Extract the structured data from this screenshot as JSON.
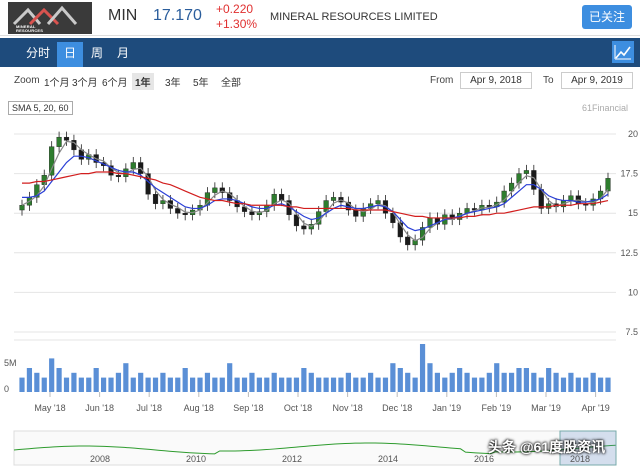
{
  "header": {
    "logo_text_1": "MINERAL",
    "logo_text_2": "RESOURCES",
    "ticker": "MIN",
    "price": "17.170",
    "change": "+0.220",
    "change_pct": "+1.30%",
    "company": "MINERAL RESOURCES LIMITED",
    "follow_label": "已关注"
  },
  "tabs": [
    {
      "label": "分时"
    },
    {
      "label": "日",
      "active": true
    },
    {
      "label": "周"
    },
    {
      "label": "月"
    }
  ],
  "zoom": {
    "label": "Zoom",
    "options": [
      "1个月",
      "3个月",
      "6个月",
      "1年",
      "3年",
      "5年",
      "全部"
    ],
    "active": "1年"
  },
  "range": {
    "from_label": "From",
    "from_value": "Apr 9, 2018",
    "to_label": "To",
    "to_value": "Apr 9, 2019"
  },
  "sma_label": "SMA 5, 20, 60",
  "credit": "61Financial",
  "watermark": "头条 @61度股资讯",
  "colors": {
    "up": "#2e7d2e",
    "down": "#1a1a1a",
    "sma5": "#888888",
    "sma20": "#2a3fd6",
    "sma60": "#d21e1e",
    "navigator": "#2e9b2e",
    "volume": "#5a8fd6",
    "header_bar": "#1e4b7c",
    "accent": "#3d8ee0"
  },
  "chart_data": {
    "type": "line",
    "price_ticks": [
      "20",
      "17.5",
      "15",
      "12.5",
      "10",
      "7.5"
    ],
    "price_range": [
      7.5,
      20
    ],
    "volume_label": "5M",
    "volume_zero": "0",
    "x_labels": [
      "May '18",
      "Jun '18",
      "Jul '18",
      "Aug '18",
      "Sep '18",
      "Oct '18",
      "Nov '18",
      "Dec '18",
      "Jan '19",
      "Feb '19",
      "Mar '19",
      "Apr '19"
    ],
    "navigator_years": [
      "2008",
      "2010",
      "2012",
      "2014",
      "2016",
      "2018"
    ],
    "close_series": [
      15.5,
      16.0,
      16.8,
      17.4,
      19.2,
      19.8,
      19.6,
      19.0,
      18.4,
      18.7,
      18.2,
      18.0,
      17.4,
      17.3,
      17.8,
      18.2,
      17.5,
      16.2,
      15.6,
      15.8,
      15.3,
      15.0,
      14.9,
      15.2,
      15.5,
      16.3,
      16.6,
      16.3,
      15.8,
      15.4,
      15.1,
      14.9,
      15.1,
      15.5,
      16.2,
      15.8,
      14.9,
      14.2,
      14.0,
      14.3,
      15.1,
      15.8,
      16.0,
      15.7,
      15.2,
      14.8,
      15.3,
      15.6,
      15.8,
      15.0,
      14.4,
      13.5,
      13.0,
      13.3,
      14.1,
      14.7,
      14.3,
      14.9,
      14.6,
      15.0,
      15.3,
      15.2,
      15.5,
      15.4,
      15.7,
      16.4,
      16.9,
      17.5,
      17.7,
      16.5,
      15.3,
      15.6,
      15.4,
      15.8,
      16.1,
      15.6,
      15.5,
      15.9,
      16.4,
      17.2
    ],
    "sma20_series": [
      16.0,
      16.0,
      16.1,
      16.4,
      17.0,
      17.6,
      18.2,
      18.6,
      18.6,
      18.5,
      18.3,
      18.1,
      17.9,
      17.7,
      17.6,
      17.6,
      17.4,
      17.0,
      16.6,
      16.3,
      16.0,
      15.7,
      15.4,
      15.3,
      15.3,
      15.5,
      15.8,
      15.9,
      15.9,
      15.8,
      15.6,
      15.4,
      15.3,
      15.3,
      15.5,
      15.6,
      15.4,
      15.1,
      14.8,
      14.6,
      14.7,
      15.0,
      15.3,
      15.5,
      15.4,
      15.3,
      15.3,
      15.4,
      15.5,
      15.4,
      15.1,
      14.6,
      14.1,
      13.9,
      14.0,
      14.2,
      14.4,
      14.6,
      14.7,
      14.8,
      15.0,
      15.1,
      15.2,
      15.3,
      15.4,
      15.6,
      16.0,
      16.4,
      16.8,
      16.8,
      16.5,
      16.1,
      15.9,
      15.8,
      15.8,
      15.7,
      15.7,
      15.8,
      15.9,
      16.2
    ],
    "sma60_series": [
      16.9,
      16.9,
      17.0,
      17.0,
      17.1,
      17.2,
      17.3,
      17.4,
      17.5,
      17.5,
      17.6,
      17.6,
      17.6,
      17.5,
      17.5,
      17.4,
      17.3,
      17.2,
      17.1,
      16.9,
      16.8,
      16.6,
      16.4,
      16.2,
      16.0,
      15.9,
      15.8,
      15.8,
      15.7,
      15.6,
      15.6,
      15.5,
      15.5,
      15.5,
      15.5,
      15.5,
      15.4,
      15.4,
      15.3,
      15.3,
      15.3,
      15.3,
      15.3,
      15.3,
      15.3,
      15.2,
      15.2,
      15.2,
      15.2,
      15.2,
      15.1,
      15.0,
      14.9,
      14.8,
      14.8,
      14.7,
      14.7,
      14.7,
      14.7,
      14.7,
      14.8,
      14.8,
      14.9,
      14.9,
      15.0,
      15.0,
      15.1,
      15.2,
      15.3,
      15.4,
      15.4,
      15.4,
      15.5,
      15.5,
      15.5,
      15.6,
      15.6,
      15.6,
      15.7,
      15.8
    ],
    "volume_series": [
      0.3,
      0.5,
      0.4,
      0.3,
      0.7,
      0.5,
      0.3,
      0.4,
      0.3,
      0.3,
      0.5,
      0.3,
      0.3,
      0.4,
      0.6,
      0.3,
      0.4,
      0.3,
      0.3,
      0.4,
      0.3,
      0.3,
      0.5,
      0.3,
      0.3,
      0.4,
      0.3,
      0.3,
      0.6,
      0.3,
      0.3,
      0.4,
      0.3,
      0.3,
      0.4,
      0.3,
      0.3,
      0.3,
      0.5,
      0.4,
      0.3,
      0.3,
      0.3,
      0.3,
      0.4,
      0.3,
      0.3,
      0.4,
      0.3,
      0.3,
      0.6,
      0.5,
      0.4,
      0.3,
      1.0,
      0.6,
      0.4,
      0.3,
      0.4,
      0.5,
      0.4,
      0.3,
      0.3,
      0.4,
      0.6,
      0.4,
      0.4,
      0.5,
      0.5,
      0.4,
      0.3,
      0.5,
      0.4,
      0.3,
      0.4,
      0.3,
      0.3,
      0.4,
      0.3,
      0.3
    ]
  }
}
